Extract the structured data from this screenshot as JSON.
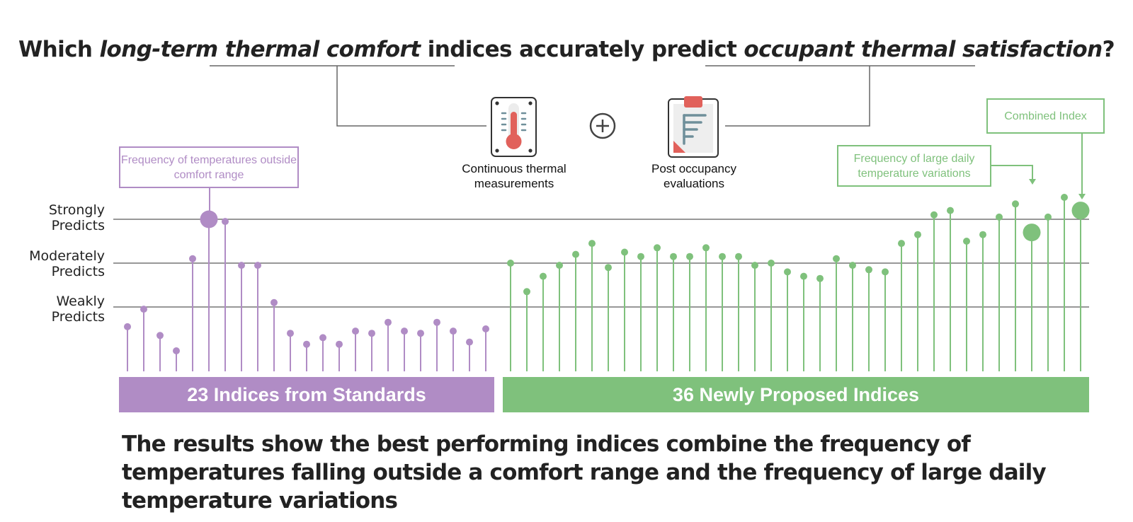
{
  "title": {
    "part1": "Which ",
    "em1": "long-term thermal comfort",
    "part2": " indices accurately predict ",
    "em2": "occupant thermal satisfaction",
    "part3": "?"
  },
  "inputs": {
    "measurements_label": "Continuous thermal measurements",
    "evaluations_label": "Post occupancy evaluations",
    "plus_icon": "plus-circle-icon"
  },
  "callouts": {
    "outside_range": "Frequency of temperatures outside comfort range",
    "daily_variations": "Frequency of large daily temperature variations",
    "combined": "Combined Index"
  },
  "colors": {
    "standards": "#b08cc5",
    "new_indices": "#7fc17c",
    "threshold_lines": "#777777",
    "text": "#222222"
  },
  "chart_data": {
    "type": "lollipop",
    "y_levels": [
      {
        "label": "Strongly Predicts",
        "value": 3
      },
      {
        "label": "Moderately Predicts",
        "value": 2
      },
      {
        "label": "Weakly Predicts",
        "value": 1
      }
    ],
    "ylim": [
      -0.15,
      4
    ],
    "groups": [
      {
        "name": "23 Indices from Standards",
        "color": "#b08cc5",
        "values": [
          0.55,
          0.95,
          0.35,
          0.0,
          2.1,
          3.0,
          2.95,
          1.95,
          1.95,
          1.1,
          0.4,
          0.15,
          0.3,
          0.15,
          0.45,
          0.4,
          0.65,
          0.45,
          0.4,
          0.65,
          0.45,
          0.2,
          0.5
        ],
        "highlight_index": 5
      },
      {
        "name": "36 Newly Proposed Indices",
        "color": "#7fc17c",
        "values": [
          2.0,
          1.35,
          1.7,
          1.95,
          2.2,
          2.45,
          1.9,
          2.25,
          2.15,
          2.35,
          2.15,
          2.15,
          2.35,
          2.15,
          2.15,
          1.95,
          2.0,
          1.8,
          1.7,
          1.65,
          2.1,
          1.95,
          1.85,
          1.8,
          2.45,
          2.65,
          3.1,
          3.2,
          2.5,
          2.65,
          3.05,
          3.35,
          2.7,
          3.05,
          3.5,
          3.2
        ],
        "highlight_indices": [
          32,
          35
        ]
      }
    ]
  },
  "bars": {
    "standards_label": "23 Indices from Standards",
    "new_label": "36 Newly Proposed Indices"
  },
  "conclusion": "The results show the best performing indices combine the frequency of temperatures falling outside a comfort range and the frequency of large daily temperature variations"
}
